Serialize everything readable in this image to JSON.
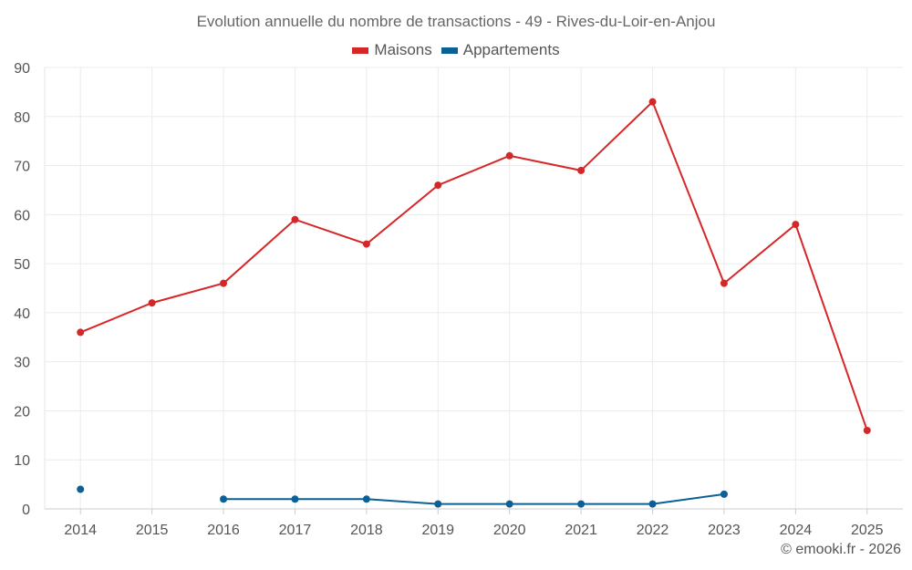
{
  "chart_data": {
    "type": "line",
    "title": "Evolution annuelle du nombre de transactions - 49 - Rives-du-Loir-en-Anjou",
    "xlabel": "",
    "ylabel": "",
    "categories": [
      "2014",
      "2015",
      "2016",
      "2017",
      "2018",
      "2019",
      "2020",
      "2021",
      "2022",
      "2023",
      "2024",
      "2025"
    ],
    "ylim": [
      0,
      90
    ],
    "yticks": [
      "0",
      "10",
      "20",
      "30",
      "40",
      "50",
      "60",
      "70",
      "80",
      "90"
    ],
    "grid": true,
    "legend_position": "top-center",
    "series": [
      {
        "name": "Maisons",
        "color": "#d62728",
        "values": [
          36,
          42,
          46,
          59,
          54,
          66,
          72,
          69,
          83,
          46,
          58,
          16
        ]
      },
      {
        "name": "Appartements",
        "color": "#0b6196",
        "values": [
          4,
          null,
          2,
          2,
          2,
          1,
          1,
          1,
          1,
          3,
          null,
          null
        ]
      }
    ]
  },
  "credit": "© emooki.fr - 2026"
}
